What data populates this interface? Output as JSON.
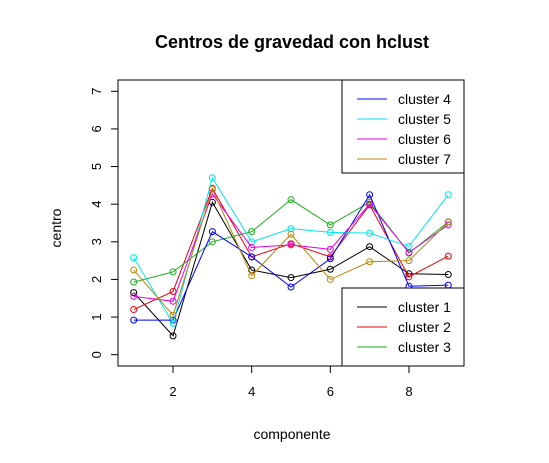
{
  "chart_data": {
    "type": "line",
    "title": "Centros de gravedad con hclust",
    "xlabel": "componente",
    "ylabel": "centro",
    "x": [
      1,
      2,
      3,
      4,
      5,
      6,
      7,
      8,
      9
    ],
    "xlim": [
      0.6,
      9.4
    ],
    "ylim": [
      -0.3,
      7.3
    ],
    "xticks": [
      "2",
      "4",
      "6",
      "8"
    ],
    "yticks": [
      "0",
      "1",
      "2",
      "3",
      "4",
      "5",
      "6",
      "7"
    ],
    "grid": false,
    "legend_placement": [
      "top-right",
      "bottom-right"
    ],
    "series": [
      {
        "name": "cluster 1",
        "color": "#000000",
        "values": [
          1.65,
          0.5,
          4.05,
          2.25,
          2.05,
          2.27,
          2.87,
          2.15,
          2.13
        ]
      },
      {
        "name": "cluster 2",
        "color": "#e8000b",
        "values": [
          1.2,
          1.68,
          4.42,
          2.6,
          2.95,
          2.6,
          3.98,
          2.07,
          2.62
        ]
      },
      {
        "name": "cluster 3",
        "color": "#1cb01c",
        "values": [
          1.93,
          2.2,
          3.0,
          3.27,
          4.12,
          3.45,
          4.05,
          2.7,
          3.53
        ]
      },
      {
        "name": "cluster 4",
        "color": "#0000ff",
        "values": [
          0.92,
          0.92,
          3.27,
          2.6,
          1.8,
          2.55,
          4.25,
          1.82,
          1.85
        ]
      },
      {
        "name": "cluster 5",
        "color": "#00e5ee",
        "values": [
          2.58,
          0.83,
          4.7,
          3.0,
          3.35,
          3.25,
          3.23,
          2.88,
          4.25
        ]
      },
      {
        "name": "cluster 6",
        "color": "#e500e5",
        "values": [
          1.55,
          1.42,
          4.27,
          2.85,
          2.92,
          2.8,
          4.0,
          2.72,
          3.45
        ]
      },
      {
        "name": "cluster 7",
        "color": "#b8860b",
        "values": [
          2.25,
          1.05,
          4.4,
          2.1,
          3.2,
          2.0,
          2.47,
          2.5,
          3.52
        ]
      }
    ],
    "legends": [
      {
        "entries": [
          "cluster 4",
          "cluster 5",
          "cluster 6",
          "cluster 7"
        ]
      },
      {
        "entries": [
          "cluster 1",
          "cluster 2",
          "cluster 3"
        ]
      }
    ]
  }
}
